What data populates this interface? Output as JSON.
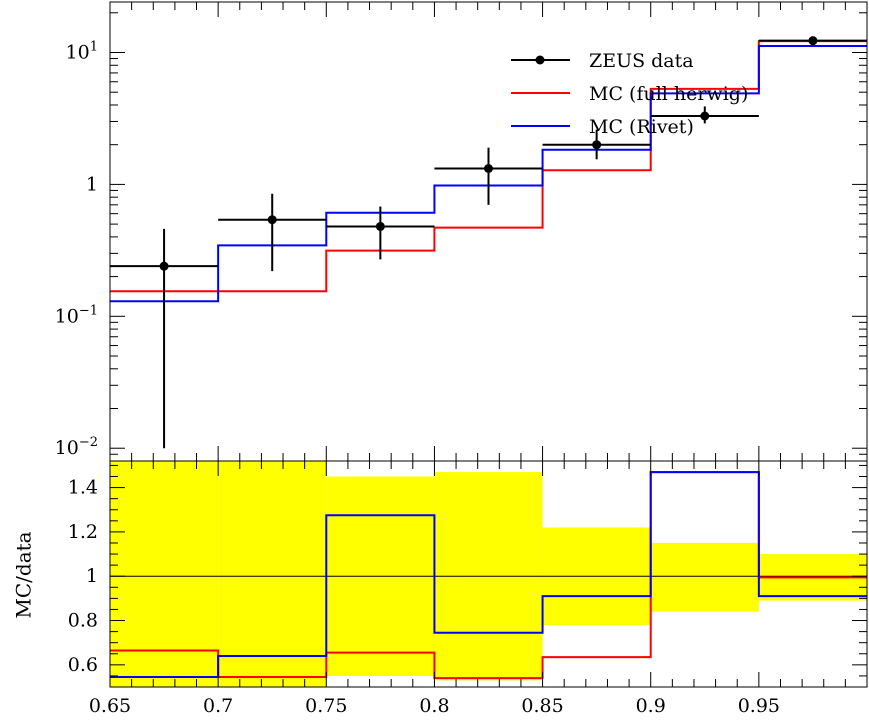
{
  "chart_data": [
    {
      "type": "line",
      "panel": "main",
      "yscale": "log",
      "ylim": [
        0.008,
        25
      ],
      "xlim": [
        0.65,
        1.0
      ],
      "bin_edges": [
        0.65,
        0.7,
        0.75,
        0.8,
        0.85,
        0.9,
        0.95,
        1.0
      ],
      "y_ticks": [
        {
          "value": 0.01,
          "base": "10",
          "exp": "−2"
        },
        {
          "value": 0.1,
          "base": "10",
          "exp": "−1"
        },
        {
          "value": 1,
          "base": "1",
          "exp": ""
        },
        {
          "value": 10,
          "base": "10",
          "exp": "1"
        }
      ],
      "series": [
        {
          "name": "ZEUS data",
          "style": "points",
          "color": "#000000",
          "values": [
            0.24,
            0.54,
            0.48,
            1.32,
            2.0,
            3.3,
            12.3
          ],
          "err_low": [
            0.01,
            0.22,
            0.27,
            0.7,
            1.55,
            2.9,
            11.4
          ],
          "err_high": [
            0.46,
            0.85,
            0.68,
            1.9,
            2.6,
            3.9,
            13.2
          ]
        },
        {
          "name": "MC (full herwig)",
          "style": "step",
          "color": "#ff0000",
          "values": [
            0.155,
            0.155,
            0.315,
            0.47,
            1.28,
            5.3,
            12.2
          ]
        },
        {
          "name": "MC (Rivet)",
          "style": "step",
          "color": "#0000ff",
          "values": [
            0.13,
            0.345,
            0.61,
            0.98,
            1.83,
            4.9,
            11.2
          ]
        }
      ]
    },
    {
      "type": "line",
      "panel": "ratio",
      "ylabel": "MC/data",
      "ylim": [
        0.5,
        1.52
      ],
      "xlim": [
        0.65,
        1.0
      ],
      "y_ticks": [
        "0.6",
        "0.8",
        "1",
        "1.2",
        "1.4"
      ],
      "x_ticks": [
        "0.65",
        "0.7",
        "0.75",
        "0.8",
        "0.85",
        "0.9",
        "0.95"
      ],
      "reference_line": 1.0,
      "band": {
        "color": "#ffff00",
        "low": [
          0.5,
          0.5,
          0.55,
          0.53,
          0.78,
          0.84,
          0.89
        ],
        "high": [
          1.52,
          1.52,
          1.45,
          1.47,
          1.22,
          1.15,
          1.1
        ]
      },
      "series": [
        {
          "name": "MC (full herwig)",
          "color": "#ff0000",
          "values": [
            0.665,
            0.545,
            0.655,
            0.54,
            0.635,
            1.47,
            0.995
          ]
        },
        {
          "name": "MC (Rivet)",
          "color": "#0000ff",
          "values": [
            0.545,
            0.64,
            1.275,
            0.745,
            0.91,
            1.47,
            0.91
          ]
        }
      ]
    }
  ]
}
